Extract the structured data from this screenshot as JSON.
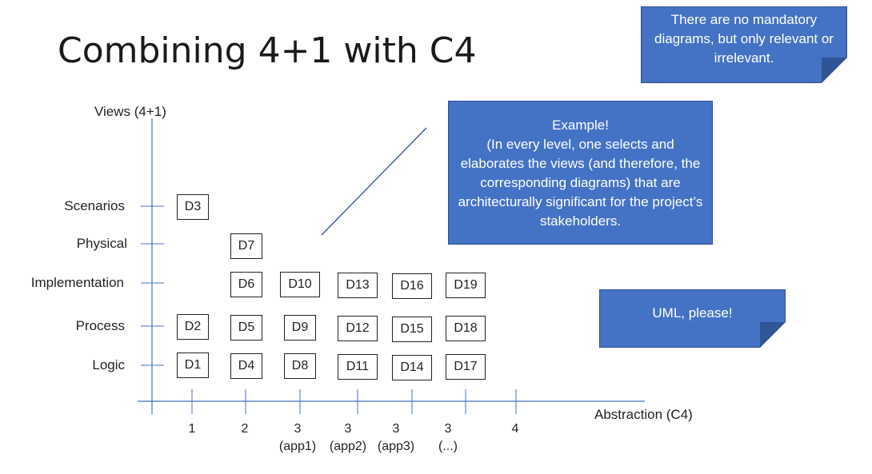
{
  "title": "Combining 4+1 with C4",
  "notes": {
    "top": "There are no mandatory diagrams, but only relevant or irrelevant.",
    "example": "Example!\n(In every level, one selects and elaborates the views (and therefore, the corresponding diagrams) that are architecturally significant for the project’s stakeholders.",
    "uml": "UML, please!"
  },
  "axes": {
    "y_title": "Views (4+1)",
    "x_title": "Abstraction (C4)",
    "views": [
      "Scenarios",
      "Physical",
      "Implementation",
      "Process",
      "Logic"
    ],
    "levels": [
      "1",
      "2",
      "3\n(app1)",
      "3\n(app2)",
      "3\n(app3)",
      "3\n(...)",
      "4"
    ]
  },
  "diagrams": [
    "D3",
    "D7",
    "D6",
    "D10",
    "D13",
    "D16",
    "D19",
    "D2",
    "D5",
    "D9",
    "D12",
    "D15",
    "D18",
    "D1",
    "D4",
    "D8",
    "D11",
    "D14",
    "D17"
  ],
  "colors": {
    "note_fill": "#4472c4",
    "axis": "#4472c4"
  }
}
